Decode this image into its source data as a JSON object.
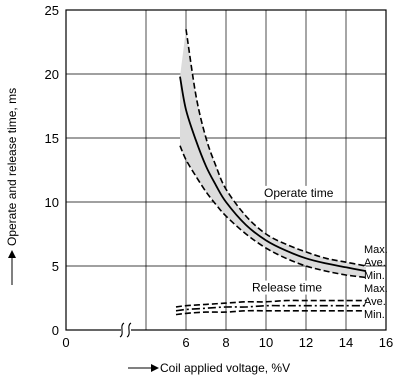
{
  "chart_data": {
    "type": "line",
    "title": "",
    "xlabel": "Coil applied voltage, %V",
    "ylabel": "Operate and release time, ms",
    "xlim": [
      0,
      16
    ],
    "ylim": [
      0,
      25
    ],
    "xticks": [
      0,
      6,
      8,
      10,
      12,
      14,
      16
    ],
    "yticks": [
      0,
      5,
      10,
      15,
      20,
      25
    ],
    "grid": true,
    "axis_break_x": true,
    "annotations": [
      "Operate time",
      "Release time"
    ],
    "series": [
      {
        "group": "operate",
        "name": "Max.",
        "style": "dashed",
        "x": [
          6.0,
          6.5,
          7,
          7.5,
          8,
          9,
          10,
          11,
          12,
          13,
          14,
          15
        ],
        "y": [
          23.5,
          18.3,
          15.0,
          12.8,
          11.0,
          8.9,
          7.5,
          6.7,
          6.1,
          5.6,
          5.3,
          5.0
        ]
      },
      {
        "group": "operate",
        "name": "Ave.",
        "style": "solid",
        "x": [
          5.7,
          6.0,
          6.5,
          7,
          7.5,
          8,
          9,
          10,
          11,
          12,
          13,
          14,
          15
        ],
        "y": [
          19.8,
          17.2,
          14.8,
          12.8,
          11.3,
          10.0,
          8.2,
          7.0,
          6.2,
          5.6,
          5.2,
          4.9,
          4.6
        ]
      },
      {
        "group": "operate",
        "name": "Min.",
        "style": "dashed",
        "x": [
          5.7,
          6.0,
          6.5,
          7,
          7.5,
          8,
          9,
          10,
          11,
          12,
          13,
          14,
          15
        ],
        "y": [
          14.4,
          13.3,
          12.0,
          10.8,
          9.8,
          8.9,
          7.5,
          6.4,
          5.6,
          5.0,
          4.6,
          4.3,
          4.1
        ]
      },
      {
        "group": "release",
        "name": "Max.",
        "style": "dashed",
        "x": [
          5.5,
          6,
          7,
          8,
          9,
          10,
          11,
          12,
          13,
          14,
          15
        ],
        "y": [
          1.8,
          1.9,
          2.0,
          2.1,
          2.2,
          2.2,
          2.3,
          2.3,
          2.3,
          2.3,
          2.3
        ]
      },
      {
        "group": "release",
        "name": "Ave.",
        "style": "dashdot",
        "x": [
          5.5,
          6,
          7,
          8,
          9,
          10,
          11,
          12,
          13,
          14,
          15
        ],
        "y": [
          1.5,
          1.6,
          1.7,
          1.8,
          1.8,
          1.9,
          1.9,
          1.9,
          1.9,
          1.9,
          1.9
        ]
      },
      {
        "group": "release",
        "name": "Min.",
        "style": "dashed",
        "x": [
          5.5,
          6,
          7,
          8,
          9,
          10,
          11,
          12,
          13,
          14,
          15
        ],
        "y": [
          1.2,
          1.3,
          1.4,
          1.4,
          1.5,
          1.5,
          1.5,
          1.5,
          1.5,
          1.5,
          1.5
        ]
      }
    ]
  }
}
